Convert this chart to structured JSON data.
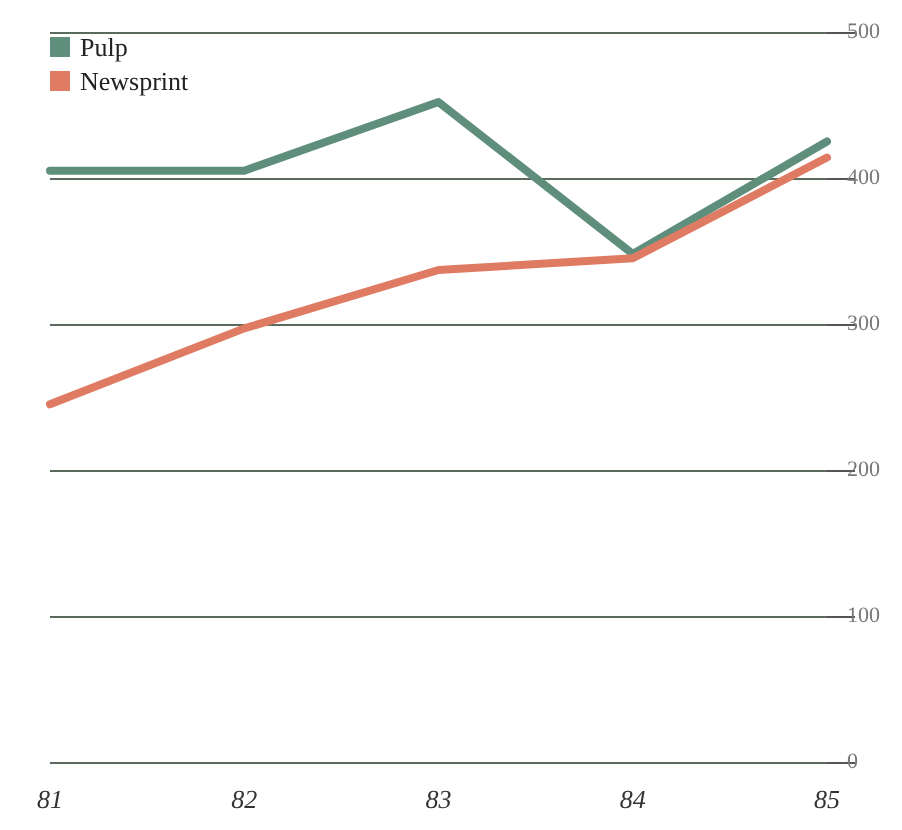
{
  "chart_data": {
    "type": "line",
    "categories": [
      "81",
      "82",
      "83",
      "84",
      "85"
    ],
    "series": [
      {
        "name": "Pulp",
        "color": "#5f8f7c",
        "values": [
          405,
          405,
          452,
          348,
          425
        ]
      },
      {
        "name": "Newsprint",
        "color": "#e07b63",
        "values": [
          245,
          297,
          337,
          345,
          414
        ]
      }
    ],
    "ylim": [
      0,
      500
    ],
    "yticks": [
      0,
      100,
      200,
      300,
      400,
      500
    ],
    "grid": "y",
    "legend": "top left",
    "marker": "none",
    "line_style": "solid"
  }
}
